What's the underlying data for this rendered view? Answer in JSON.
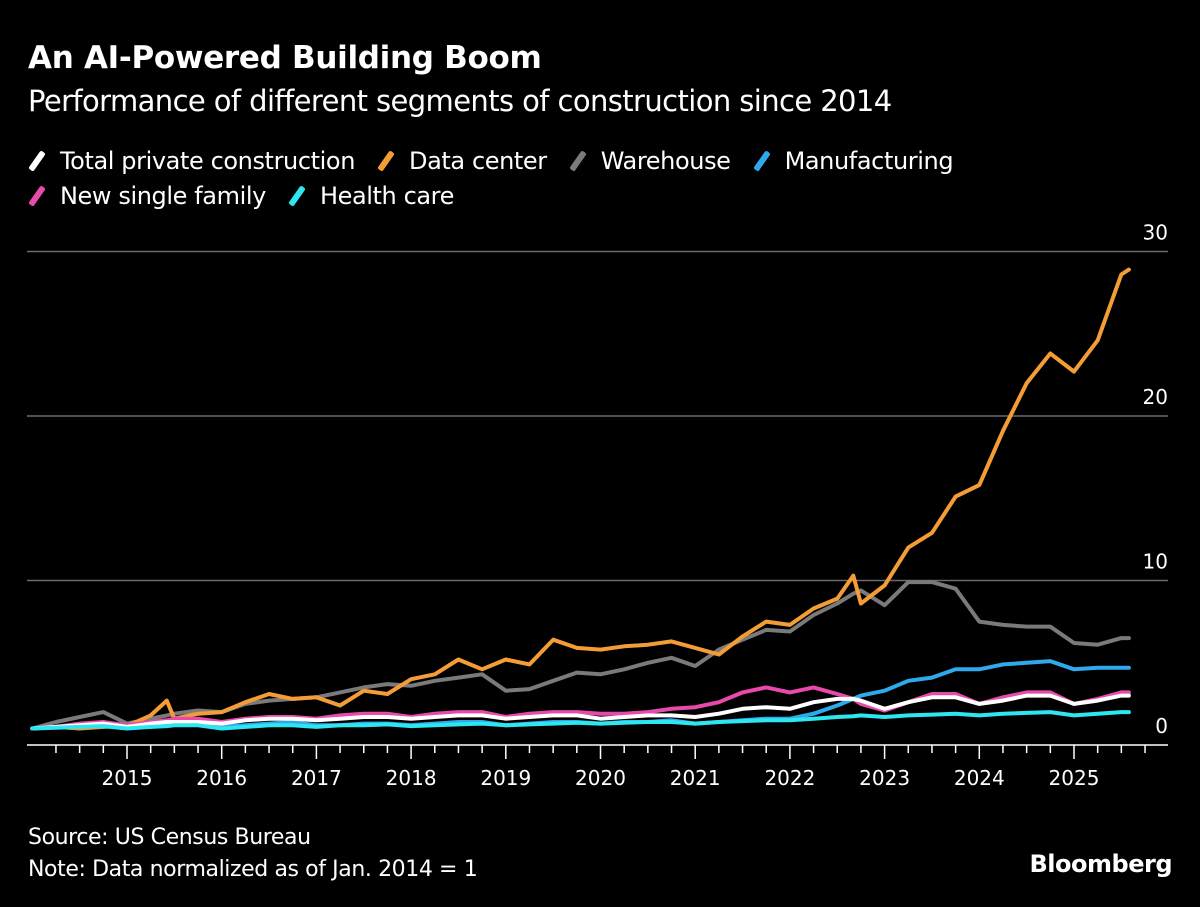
{
  "header": {
    "title": "An AI-Powered Building Boom",
    "subtitle": "Performance of different segments of construction since 2014"
  },
  "legend": [
    {
      "label": "Total private construction",
      "color": "#ffffff",
      "row": 0
    },
    {
      "label": "Data center",
      "color": "#f49d37",
      "row": 0
    },
    {
      "label": "Warehouse",
      "color": "#7a7a7a",
      "row": 0
    },
    {
      "label": "Manufacturing",
      "color": "#2fa8ec",
      "row": 0
    },
    {
      "label": "New single family",
      "color": "#e84aab",
      "row": 1
    },
    {
      "label": "Health care",
      "color": "#2ee6f0",
      "row": 1
    }
  ],
  "footer": {
    "source": "Source: US Census Bureau",
    "note": "Note: Data normalized as of Jan. 2014 = 1",
    "brand": "Bloomberg"
  },
  "chart_data": {
    "type": "line",
    "title": "An AI-Powered Building Boom",
    "subtitle": "Performance of different segments of construction since 2014",
    "xlabel": "",
    "ylabel": "",
    "x_ticks": [
      "2015",
      "2016",
      "2017",
      "2018",
      "2019",
      "2020",
      "2021",
      "2022",
      "2023",
      "2024",
      "2025"
    ],
    "y_ticks": [
      0,
      10,
      20,
      30
    ],
    "ylim": [
      0,
      30
    ],
    "xlim": [
      2014.0,
      2025.75
    ],
    "grid": "horizontal",
    "y_axis_side": "right",
    "legend_position": "top",
    "x": [
      2014.0,
      2014.25,
      2014.5,
      2014.75,
      2015.0,
      2015.25,
      2015.42,
      2015.5,
      2015.75,
      2016.0,
      2016.25,
      2016.5,
      2016.75,
      2017.0,
      2017.25,
      2017.5,
      2017.75,
      2018.0,
      2018.25,
      2018.5,
      2018.75,
      2019.0,
      2019.25,
      2019.5,
      2019.75,
      2020.0,
      2020.25,
      2020.5,
      2020.75,
      2021.0,
      2021.25,
      2021.5,
      2021.75,
      2022.0,
      2022.25,
      2022.5,
      2022.67,
      2022.75,
      2023.0,
      2023.25,
      2023.5,
      2023.75,
      2024.0,
      2024.25,
      2024.5,
      2024.75,
      2025.0,
      2025.25,
      2025.5,
      2025.58
    ],
    "series": [
      {
        "name": "Warehouse",
        "color": "#7a7a7a",
        "values": [
          1.0,
          1.4,
          1.7,
          2.0,
          1.3,
          1.6,
          1.8,
          1.9,
          2.1,
          2.0,
          2.5,
          2.7,
          2.8,
          2.9,
          3.2,
          3.5,
          3.7,
          3.6,
          3.9,
          4.1,
          4.3,
          3.3,
          3.4,
          3.9,
          4.4,
          4.3,
          4.6,
          5.0,
          5.3,
          4.8,
          5.8,
          6.4,
          7.0,
          6.9,
          7.9,
          8.6,
          9.2,
          9.4,
          8.5,
          9.9,
          9.9,
          9.5,
          7.5,
          7.3,
          7.2,
          7.2,
          6.2,
          6.1,
          6.5,
          6.5
        ]
      },
      {
        "name": "Data center",
        "color": "#f49d37",
        "values": [
          1.0,
          1.1,
          1.0,
          1.1,
          1.15,
          1.8,
          2.7,
          1.6,
          1.9,
          2.0,
          2.6,
          3.1,
          2.8,
          2.9,
          2.4,
          3.3,
          3.1,
          4.0,
          4.3,
          5.2,
          4.6,
          5.2,
          4.9,
          6.4,
          5.9,
          5.8,
          6.0,
          6.1,
          6.3,
          5.9,
          5.5,
          6.6,
          7.5,
          7.3,
          8.3,
          8.9,
          10.3,
          8.6,
          9.7,
          12.0,
          12.9,
          15.1,
          15.8,
          19.1,
          22.0,
          23.8,
          22.7,
          24.6,
          28.6,
          28.9
        ]
      },
      {
        "name": "Manufacturing",
        "color": "#2fa8ec",
        "values": [
          1.0,
          1.1,
          1.2,
          1.3,
          1.1,
          1.1,
          1.2,
          1.3,
          1.3,
          1.1,
          1.2,
          1.3,
          1.4,
          1.2,
          1.2,
          1.3,
          1.3,
          1.2,
          1.3,
          1.4,
          1.4,
          1.2,
          1.3,
          1.4,
          1.4,
          1.3,
          1.4,
          1.4,
          1.5,
          1.3,
          1.4,
          1.5,
          1.6,
          1.6,
          1.9,
          2.4,
          2.8,
          3.0,
          3.3,
          3.9,
          4.1,
          4.6,
          4.6,
          4.9,
          5.0,
          5.1,
          4.6,
          4.7,
          4.7,
          4.7
        ]
      },
      {
        "name": "New single family",
        "color": "#e84aab",
        "values": [
          1.0,
          1.1,
          1.3,
          1.4,
          1.2,
          1.4,
          1.5,
          1.6,
          1.6,
          1.4,
          1.6,
          1.7,
          1.7,
          1.6,
          1.8,
          1.9,
          1.9,
          1.7,
          1.9,
          2.0,
          2.0,
          1.7,
          1.9,
          2.0,
          2.0,
          1.9,
          1.9,
          2.0,
          2.2,
          2.3,
          2.6,
          3.2,
          3.5,
          3.2,
          3.5,
          3.1,
          2.8,
          2.5,
          2.1,
          2.6,
          3.1,
          3.1,
          2.5,
          2.9,
          3.2,
          3.2,
          2.5,
          2.8,
          3.2,
          3.2
        ]
      },
      {
        "name": "Total private construction",
        "color": "#ffffff",
        "values": [
          1.0,
          1.1,
          1.2,
          1.3,
          1.1,
          1.3,
          1.4,
          1.4,
          1.4,
          1.3,
          1.5,
          1.6,
          1.6,
          1.5,
          1.6,
          1.7,
          1.7,
          1.6,
          1.7,
          1.8,
          1.8,
          1.6,
          1.7,
          1.8,
          1.8,
          1.6,
          1.7,
          1.8,
          1.8,
          1.7,
          1.9,
          2.2,
          2.3,
          2.2,
          2.6,
          2.8,
          2.8,
          2.7,
          2.2,
          2.6,
          2.9,
          2.9,
          2.5,
          2.7,
          3.0,
          3.0,
          2.5,
          2.7,
          3.0,
          3.0
        ]
      },
      {
        "name": "Health care",
        "color": "#2ee6f0",
        "values": [
          1.0,
          1.05,
          1.1,
          1.15,
          1.0,
          1.1,
          1.15,
          1.2,
          1.2,
          1.0,
          1.1,
          1.2,
          1.2,
          1.1,
          1.2,
          1.2,
          1.25,
          1.15,
          1.2,
          1.25,
          1.3,
          1.2,
          1.25,
          1.3,
          1.35,
          1.3,
          1.35,
          1.4,
          1.4,
          1.3,
          1.4,
          1.45,
          1.5,
          1.5,
          1.6,
          1.7,
          1.75,
          1.8,
          1.7,
          1.8,
          1.85,
          1.9,
          1.8,
          1.9,
          1.95,
          2.0,
          1.8,
          1.9,
          2.0,
          2.0
        ]
      }
    ]
  }
}
